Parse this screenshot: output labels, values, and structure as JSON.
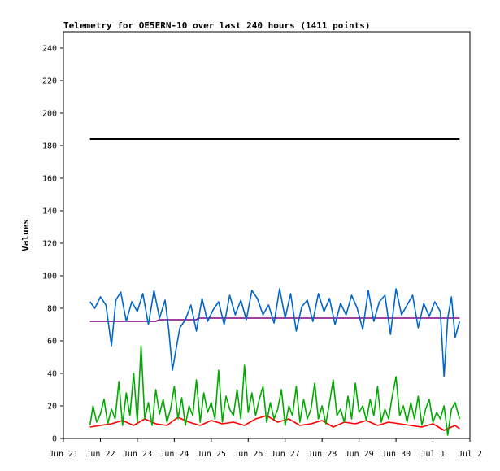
{
  "chart_data": {
    "type": "line",
    "title": "Telemetry for OE5ERN-10 over last 240 hours (1411 points)",
    "xlabel": "",
    "ylabel": "Values",
    "ylim": [
      0,
      250
    ],
    "xlim": [
      "Jun 21",
      "Jul 2"
    ],
    "y_ticks": [
      0,
      20,
      40,
      60,
      80,
      100,
      120,
      140,
      160,
      180,
      200,
      220,
      240
    ],
    "x_ticks": [
      "Jun 21",
      "Jun 22",
      "Jun 23",
      "Jun 24",
      "Jun 25",
      "Jun 26",
      "Jun 27",
      "Jun 28",
      "Jun 29",
      "Jun 30",
      "Jul 1",
      "Jul 2"
    ],
    "grid": false,
    "legend": "none",
    "series": [
      {
        "color": "#000000",
        "x": [
          0.72,
          10.72
        ],
        "values": [
          184,
          184
        ]
      },
      {
        "color": "#800080",
        "x": [
          0.72,
          2.5,
          2.6,
          3.6,
          3.65,
          10.72
        ],
        "values": [
          72,
          72,
          73,
          73,
          74,
          74
        ]
      },
      {
        "color": "#0066cc",
        "x": [
          0.72,
          0.85,
          1.0,
          1.15,
          1.3,
          1.42,
          1.55,
          1.7,
          1.85,
          2.0,
          2.15,
          2.3,
          2.45,
          2.6,
          2.75,
          2.85,
          2.95,
          3.05,
          3.15,
          3.3,
          3.45,
          3.6,
          3.75,
          3.9,
          4.05,
          4.2,
          4.35,
          4.5,
          4.65,
          4.8,
          4.95,
          5.1,
          5.25,
          5.4,
          5.55,
          5.7,
          5.85,
          6.0,
          6.15,
          6.3,
          6.45,
          6.6,
          6.75,
          6.9,
          7.05,
          7.2,
          7.35,
          7.5,
          7.65,
          7.8,
          7.95,
          8.1,
          8.25,
          8.4,
          8.55,
          8.7,
          8.85,
          9.0,
          9.15,
          9.3,
          9.45,
          9.6,
          9.75,
          9.9,
          10.05,
          10.2,
          10.3,
          10.4,
          10.5,
          10.6,
          10.72
        ],
        "values": [
          84,
          80,
          87,
          82,
          57,
          85,
          90,
          72,
          84,
          78,
          89,
          70,
          91,
          74,
          85,
          67,
          42,
          55,
          68,
          73,
          82,
          66,
          86,
          72,
          79,
          84,
          70,
          88,
          76,
          85,
          73,
          91,
          86,
          76,
          82,
          71,
          92,
          74,
          89,
          66,
          81,
          85,
          72,
          89,
          78,
          86,
          70,
          83,
          76,
          88,
          80,
          67,
          91,
          72,
          84,
          88,
          64,
          92,
          76,
          82,
          88,
          68,
          83,
          75,
          84,
          78,
          38,
          74,
          87,
          62,
          72
        ]
      },
      {
        "color": "#ff0000",
        "x": [
          0.72,
          1.0,
          1.3,
          1.6,
          1.9,
          2.2,
          2.5,
          2.8,
          3.1,
          3.4,
          3.7,
          4.0,
          4.3,
          4.6,
          4.9,
          5.2,
          5.5,
          5.8,
          6.1,
          6.4,
          6.7,
          7.0,
          7.3,
          7.6,
          7.9,
          8.2,
          8.5,
          8.8,
          9.1,
          9.4,
          9.7,
          10.0,
          10.3,
          10.6,
          10.72
        ],
        "values": [
          7,
          8,
          9,
          11,
          8,
          12,
          9,
          8,
          13,
          10,
          8,
          11,
          9,
          10,
          8,
          12,
          14,
          10,
          12,
          8,
          9,
          11,
          7,
          10,
          9,
          11,
          8,
          10,
          9,
          8,
          7,
          9,
          5,
          8,
          6
        ]
      },
      {
        "color": "#00aa00",
        "x": [
          0.72,
          0.8,
          0.9,
          1.0,
          1.1,
          1.2,
          1.3,
          1.4,
          1.5,
          1.6,
          1.7,
          1.8,
          1.9,
          2.0,
          2.1,
          2.2,
          2.3,
          2.4,
          2.5,
          2.6,
          2.7,
          2.8,
          2.9,
          3.0,
          3.1,
          3.2,
          3.3,
          3.4,
          3.5,
          3.6,
          3.7,
          3.8,
          3.9,
          4.0,
          4.1,
          4.2,
          4.3,
          4.4,
          4.5,
          4.6,
          4.7,
          4.8,
          4.9,
          5.0,
          5.1,
          5.2,
          5.3,
          5.4,
          5.5,
          5.6,
          5.7,
          5.8,
          5.9,
          6.0,
          6.1,
          6.2,
          6.3,
          6.4,
          6.5,
          6.6,
          6.7,
          6.8,
          6.9,
          7.0,
          7.1,
          7.2,
          7.3,
          7.4,
          7.5,
          7.6,
          7.7,
          7.8,
          7.9,
          8.0,
          8.1,
          8.2,
          8.3,
          8.4,
          8.5,
          8.6,
          8.7,
          8.8,
          8.9,
          9.0,
          9.1,
          9.2,
          9.3,
          9.4,
          9.5,
          9.6,
          9.7,
          9.8,
          9.9,
          10.0,
          10.1,
          10.2,
          10.3,
          10.4,
          10.5,
          10.6,
          10.72
        ],
        "values": [
          8,
          20,
          10,
          15,
          24,
          9,
          18,
          12,
          35,
          8,
          28,
          14,
          40,
          10,
          57,
          12,
          22,
          8,
          30,
          15,
          24,
          10,
          18,
          32,
          12,
          25,
          8,
          20,
          14,
          36,
          10,
          28,
          16,
          22,
          12,
          42,
          10,
          26,
          18,
          14,
          30,
          12,
          45,
          16,
          28,
          14,
          24,
          32,
          10,
          22,
          12,
          18,
          30,
          8,
          20,
          14,
          32,
          10,
          24,
          12,
          18,
          34,
          12,
          20,
          9,
          22,
          36,
          14,
          18,
          10,
          26,
          12,
          34,
          16,
          20,
          11,
          24,
          14,
          32,
          10,
          18,
          12,
          26,
          38,
          14,
          20,
          10,
          22,
          12,
          26,
          8,
          18,
          24,
          10,
          16,
          12,
          20,
          2,
          18,
          22,
          12
        ]
      }
    ]
  }
}
